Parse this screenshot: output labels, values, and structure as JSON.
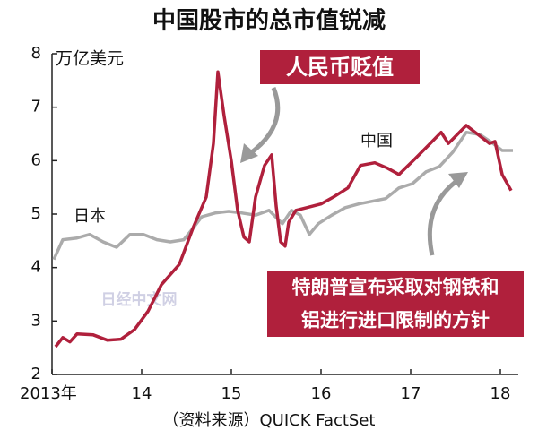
{
  "chart_data": {
    "type": "line",
    "title": "中国股市的总市值锐减",
    "y_label": "万亿美元",
    "source": "（资料来源）QUICK FactSet",
    "watermark": "日经中文网",
    "xlim": [
      2013,
      2018.2
    ],
    "xticks": [
      {
        "value": 2013,
        "label": "2013年"
      },
      {
        "value": 2014,
        "label": "14"
      },
      {
        "value": 2015,
        "label": "15"
      },
      {
        "value": 2016,
        "label": "16"
      },
      {
        "value": 2017,
        "label": "17"
      },
      {
        "value": 2018,
        "label": "18"
      }
    ],
    "ylim": [
      2,
      8
    ],
    "yticks": [
      2,
      3,
      4,
      5,
      6,
      7,
      8
    ],
    "annotations": [
      {
        "lines": [
          "人民币贬值"
        ]
      },
      {
        "lines": [
          "特朗普宣布采取对钢铁和",
          "铝进行进口限制的方针"
        ]
      }
    ],
    "series": [
      {
        "name": "中国",
        "color": "#b0203c",
        "x": [
          2013.04,
          2013.12,
          2013.2,
          2013.28,
          2013.46,
          2013.62,
          2013.77,
          2013.92,
          2014.07,
          2014.22,
          2014.42,
          2014.57,
          2014.72,
          2014.8,
          2014.85,
          2014.92,
          2015.0,
          2015.07,
          2015.14,
          2015.2,
          2015.27,
          2015.37,
          2015.45,
          2015.5,
          2015.55,
          2015.6,
          2015.64,
          2015.72,
          2015.84,
          2016.0,
          2016.14,
          2016.3,
          2016.44,
          2016.6,
          2016.74,
          2016.87,
          2017.04,
          2017.2,
          2017.34,
          2017.42,
          2017.52,
          2017.62,
          2017.75,
          2017.88,
          2017.94,
          2018.02,
          2018.12
        ],
        "values": [
          2.52,
          2.69,
          2.61,
          2.76,
          2.74,
          2.64,
          2.66,
          2.84,
          3.18,
          3.68,
          4.06,
          4.73,
          5.32,
          6.32,
          7.66,
          6.83,
          5.99,
          5.07,
          4.57,
          4.48,
          5.32,
          5.91,
          6.11,
          5.15,
          4.48,
          4.4,
          4.85,
          5.07,
          5.12,
          5.19,
          5.32,
          5.49,
          5.91,
          5.96,
          5.86,
          5.74,
          6.02,
          6.29,
          6.53,
          6.32,
          6.49,
          6.66,
          6.49,
          6.32,
          6.36,
          5.74,
          5.44
        ]
      },
      {
        "name": "日本",
        "color": "#ababab",
        "x": [
          2013.02,
          2013.12,
          2013.27,
          2013.42,
          2013.57,
          2013.72,
          2013.87,
          2014.02,
          2014.17,
          2014.32,
          2014.47,
          2014.57,
          2014.67,
          2014.82,
          2014.97,
          2015.12,
          2015.27,
          2015.42,
          2015.57,
          2015.67,
          2015.77,
          2015.87,
          2015.97,
          2016.12,
          2016.27,
          2016.42,
          2016.57,
          2016.72,
          2016.87,
          2017.02,
          2017.17,
          2017.32,
          2017.47,
          2017.62,
          2017.77,
          2017.92,
          2018.02,
          2018.14
        ],
        "values": [
          4.15,
          4.52,
          4.55,
          4.62,
          4.48,
          4.38,
          4.62,
          4.62,
          4.52,
          4.48,
          4.52,
          4.73,
          4.95,
          5.02,
          5.05,
          5.02,
          4.98,
          5.07,
          4.82,
          5.07,
          4.98,
          4.62,
          4.82,
          4.98,
          5.12,
          5.19,
          5.24,
          5.29,
          5.49,
          5.57,
          5.79,
          5.89,
          6.16,
          6.53,
          6.49,
          6.32,
          6.19,
          6.19
        ]
      }
    ]
  }
}
